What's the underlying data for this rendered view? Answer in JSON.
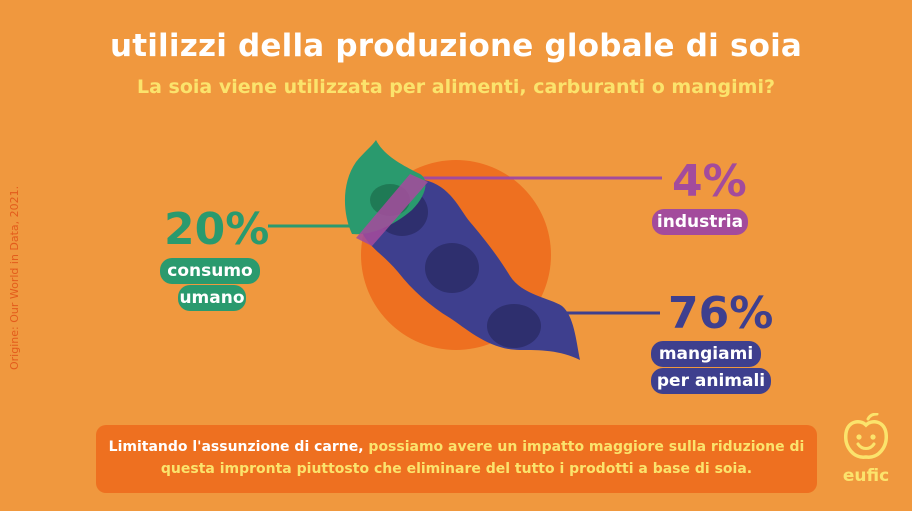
{
  "title": "utilizzi della produzione globale di soia",
  "subtitle": "La soia viene utilizzata per alimenti, carburanti o mangimi?",
  "source": "Origine: Our World in Data, 2021.",
  "categories": [
    {
      "key": "human",
      "percent": "20%",
      "value": 20,
      "label_lines": [
        "consumo",
        "umano"
      ],
      "color": "#2A9A6E"
    },
    {
      "key": "industry",
      "percent": "4%",
      "value": 4,
      "label_lines": [
        "industria"
      ],
      "color": "#A34B9C"
    },
    {
      "key": "feed",
      "percent": "76%",
      "value": 76,
      "label_lines": [
        "mangiami",
        "per animali"
      ],
      "color": "#3E3F8E"
    }
  ],
  "note": {
    "part1": "Limitando l'assunzione di carne,",
    "part2": " possiamo avere un impatto maggiore sulla riduzione di questa impronta piuttosto che eliminare del tutto i prodotti a base di soia."
  },
  "logo": {
    "text": "eufic",
    "icon": "apple-face-icon"
  },
  "colors": {
    "background": "#F0983E",
    "circle": "#EE7020",
    "title": "#ffffff",
    "subtitle": "#FBE36C"
  }
}
